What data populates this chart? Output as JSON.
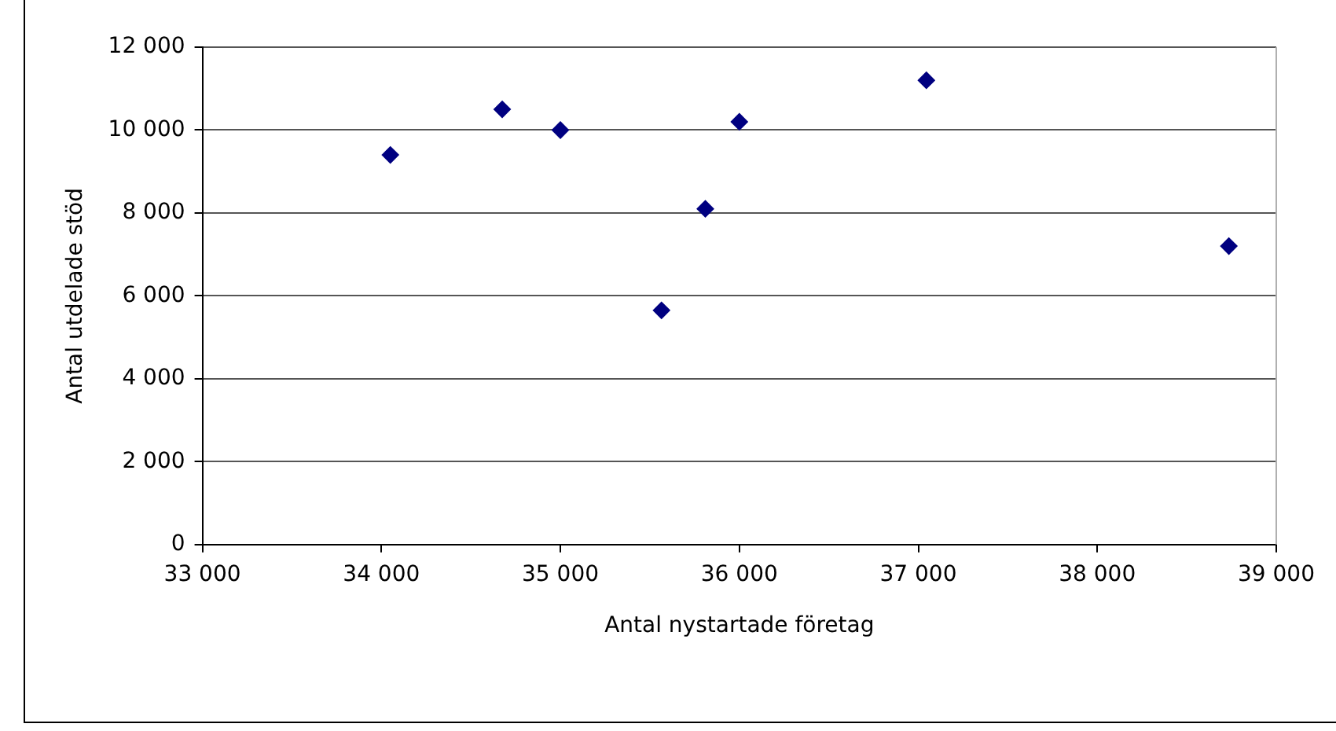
{
  "chart_data": {
    "type": "scatter",
    "xlabel": "Antal nystartade företag",
    "ylabel": "Antal utdelade stöd",
    "x": [
      34050,
      34675,
      35000,
      35565,
      35810,
      36000,
      37045,
      38735
    ],
    "series": [
      {
        "color": "#000080",
        "values": [
          9400,
          10500,
          10000,
          5650,
          8100,
          10200,
          11200,
          7200
        ]
      }
    ],
    "xlim": [
      33000,
      39000
    ],
    "xticks": [
      {
        "value": 33000,
        "label": "33 000"
      },
      {
        "value": 34000,
        "label": "34 000"
      },
      {
        "value": 35000,
        "label": "35 000"
      },
      {
        "value": 36000,
        "label": "36 000"
      },
      {
        "value": 37000,
        "label": "37 000"
      },
      {
        "value": 38000,
        "label": "38 000"
      },
      {
        "value": 39000,
        "label": "39 000"
      }
    ],
    "ylim": [
      0,
      12000
    ],
    "yticks": [
      0,
      {
        "value": 2000,
        "label": "2 000"
      },
      {
        "value": 4000,
        "label": "4 000"
      },
      {
        "value": 6000,
        "label": "6 000"
      },
      {
        "value": 8000,
        "label": "8 000"
      },
      {
        "value": 10000,
        "label": "10 000"
      },
      {
        "value": 12000,
        "label": "12 000"
      }
    ],
    "grid": "y",
    "legend": false,
    "marker": "diamond"
  }
}
